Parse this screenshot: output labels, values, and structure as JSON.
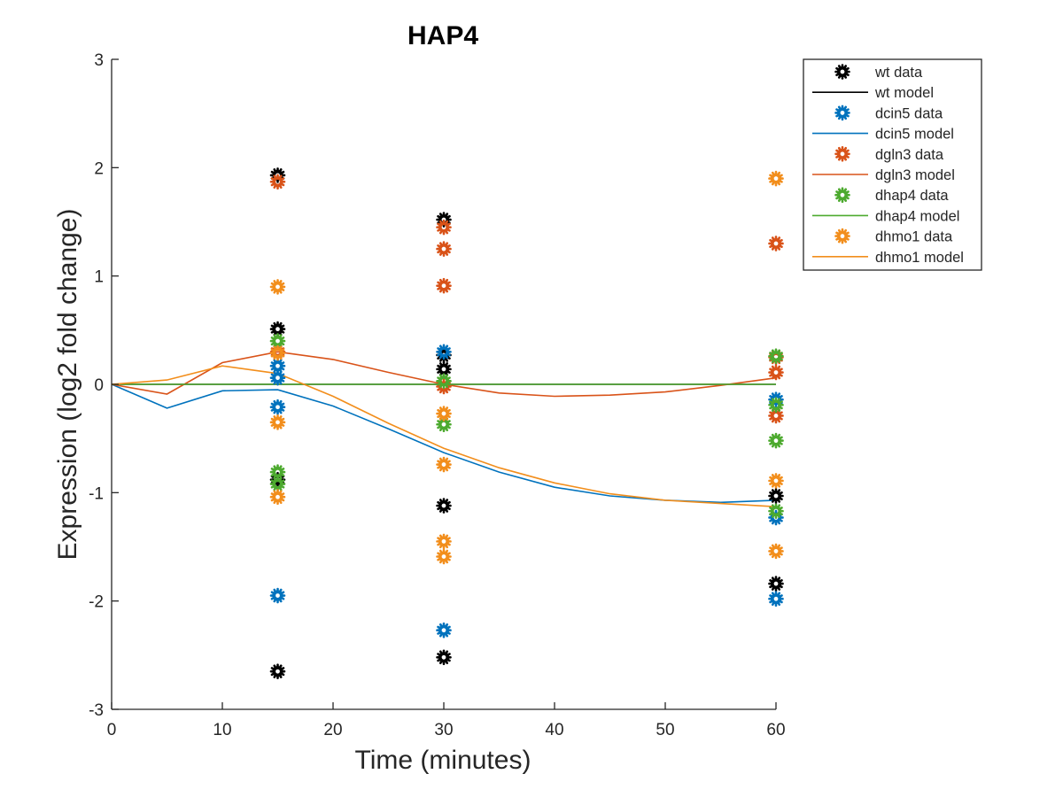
{
  "chart_data": {
    "type": "scatter",
    "title": "HAP4",
    "xlabel": "Time (minutes)",
    "ylabel": "Expression (log2 fold change)",
    "xlim": [
      0,
      60
    ],
    "ylim": [
      -3,
      3
    ],
    "xticks": [
      0,
      10,
      20,
      30,
      40,
      50,
      60
    ],
    "yticks": [
      -3,
      -2,
      -1,
      0,
      1,
      2,
      3
    ],
    "grid": false,
    "legend_position": "top-right, outside plot area",
    "series": [
      {
        "name": "wt data",
        "kind": "markers",
        "color": "#000000",
        "points": [
          [
            15,
            1.93
          ],
          [
            15,
            0.51
          ],
          [
            15,
            -0.88
          ],
          [
            15,
            -2.65
          ],
          [
            30,
            1.52
          ],
          [
            30,
            0.27
          ],
          [
            30,
            0.14
          ],
          [
            30,
            -1.12
          ],
          [
            30,
            -2.52
          ],
          [
            60,
            -1.03
          ],
          [
            60,
            -1.84
          ]
        ]
      },
      {
        "name": "wt model",
        "kind": "line",
        "color": "#000000",
        "points": [
          [
            0,
            0
          ],
          [
            5,
            0
          ],
          [
            10,
            0
          ],
          [
            15,
            0
          ],
          [
            20,
            0
          ],
          [
            25,
            0
          ],
          [
            30,
            0
          ],
          [
            35,
            0
          ],
          [
            40,
            0
          ],
          [
            45,
            0
          ],
          [
            50,
            0
          ],
          [
            55,
            0
          ],
          [
            60,
            0
          ]
        ]
      },
      {
        "name": "dcin5 data",
        "kind": "markers",
        "color": "#0072BD",
        "points": [
          [
            15,
            0.17
          ],
          [
            15,
            0.06
          ],
          [
            15,
            -0.21
          ],
          [
            15,
            -1.95
          ],
          [
            30,
            0.3
          ],
          [
            30,
            -2.27
          ],
          [
            60,
            -0.14
          ],
          [
            60,
            -1.23
          ],
          [
            60,
            -1.98
          ]
        ]
      },
      {
        "name": "dcin5 model",
        "kind": "line",
        "color": "#0072BD",
        "points": [
          [
            0,
            0
          ],
          [
            5,
            -0.22
          ],
          [
            10,
            -0.06
          ],
          [
            15,
            -0.05
          ],
          [
            20,
            -0.2
          ],
          [
            25,
            -0.41
          ],
          [
            30,
            -0.63
          ],
          [
            35,
            -0.81
          ],
          [
            40,
            -0.95
          ],
          [
            45,
            -1.03
          ],
          [
            50,
            -1.07
          ],
          [
            55,
            -1.09
          ],
          [
            60,
            -1.07
          ]
        ]
      },
      {
        "name": "dgln3 data",
        "kind": "markers",
        "color": "#D95319",
        "points": [
          [
            15,
            1.87
          ],
          [
            15,
            0.3
          ],
          [
            30,
            1.45
          ],
          [
            30,
            1.25
          ],
          [
            30,
            0.91
          ],
          [
            30,
            -0.02
          ],
          [
            60,
            1.3
          ],
          [
            60,
            0.25
          ],
          [
            60,
            0.11
          ],
          [
            60,
            -0.29
          ]
        ]
      },
      {
        "name": "dgln3 model",
        "kind": "line",
        "color": "#D95319",
        "points": [
          [
            0,
            0
          ],
          [
            5,
            -0.09
          ],
          [
            10,
            0.2
          ],
          [
            15,
            0.3
          ],
          [
            20,
            0.23
          ],
          [
            25,
            0.11
          ],
          [
            30,
            0.0
          ],
          [
            35,
            -0.08
          ],
          [
            40,
            -0.11
          ],
          [
            45,
            -0.1
          ],
          [
            50,
            -0.07
          ],
          [
            55,
            -0.01
          ],
          [
            60,
            0.06
          ]
        ]
      },
      {
        "name": "dhap4 data",
        "kind": "markers",
        "color": "#4DAA2F",
        "points": [
          [
            15,
            0.4
          ],
          [
            15,
            -0.81
          ],
          [
            15,
            -0.92
          ],
          [
            30,
            0.03
          ],
          [
            30,
            -0.37
          ],
          [
            60,
            0.26
          ],
          [
            60,
            -0.19
          ],
          [
            60,
            -0.52
          ],
          [
            60,
            -1.17
          ]
        ]
      },
      {
        "name": "dhap4 model",
        "kind": "line",
        "color": "#4DAA2F",
        "points": [
          [
            0,
            0
          ],
          [
            5,
            0
          ],
          [
            10,
            0
          ],
          [
            15,
            0
          ],
          [
            20,
            0
          ],
          [
            25,
            0
          ],
          [
            30,
            0
          ],
          [
            35,
            0
          ],
          [
            40,
            0
          ],
          [
            45,
            0
          ],
          [
            50,
            0
          ],
          [
            55,
            0
          ],
          [
            60,
            0
          ]
        ]
      },
      {
        "name": "dhmo1 data",
        "kind": "markers",
        "color": "#F28E1C",
        "points": [
          [
            15,
            0.9
          ],
          [
            15,
            0.29
          ],
          [
            15,
            -0.35
          ],
          [
            15,
            -1.04
          ],
          [
            30,
            -0.27
          ],
          [
            30,
            -0.74
          ],
          [
            30,
            -1.45
          ],
          [
            30,
            -1.59
          ],
          [
            60,
            1.9
          ],
          [
            60,
            -0.89
          ],
          [
            60,
            -1.54
          ]
        ]
      },
      {
        "name": "dhmo1 model",
        "kind": "line",
        "color": "#F28E1C",
        "points": [
          [
            0,
            0
          ],
          [
            5,
            0.04
          ],
          [
            10,
            0.17
          ],
          [
            15,
            0.1
          ],
          [
            20,
            -0.11
          ],
          [
            25,
            -0.36
          ],
          [
            30,
            -0.59
          ],
          [
            35,
            -0.77
          ],
          [
            40,
            -0.91
          ],
          [
            45,
            -1.01
          ],
          [
            50,
            -1.07
          ],
          [
            55,
            -1.1
          ],
          [
            60,
            -1.13
          ]
        ]
      }
    ]
  }
}
